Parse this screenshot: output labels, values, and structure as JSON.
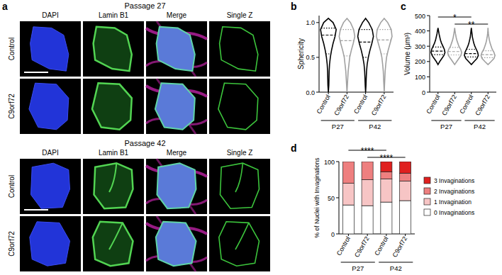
{
  "image_panel": {
    "label": "a",
    "sections": [
      {
        "title": "Passage 27",
        "columns": [
          "DAPI",
          "Lamin B1",
          "Merge",
          "Single Z"
        ],
        "rows": [
          "Control",
          "C9orf72"
        ]
      },
      {
        "title": "Passage 42",
        "columns": [
          "DAPI",
          "Lamin B1",
          "Merge",
          "Single Z"
        ],
        "rows": [
          "Control",
          "C9orf72"
        ]
      }
    ]
  },
  "chart_data": [
    {
      "type": "violin",
      "label": "b",
      "ylabel": "Sphericity",
      "categories": [
        "Control",
        "C9orf72",
        "Control",
        "C9orf72"
      ],
      "groups": [
        "P27",
        "P42"
      ],
      "colors": [
        "#000000",
        "#a0a0a0",
        "#000000",
        "#a0a0a0"
      ],
      "ylim": [
        0,
        1.1
      ],
      "yticks": [
        {
          "value": 0,
          "label": "0.0"
        },
        0.5,
        {
          "value": 1,
          "label": "1.0"
        }
      ],
      "levels": [
        0,
        0.1,
        0.2,
        0.3,
        0.4,
        0.5,
        0.6,
        0.7,
        0.8,
        0.9,
        1.0,
        1.06
      ],
      "density": [
        [
          0,
          0.06,
          0.08,
          0.1,
          0.15,
          0.25,
          0.4,
          0.6,
          0.85,
          1.0,
          0.6,
          0
        ],
        [
          0,
          0.05,
          0.1,
          0.15,
          0.25,
          0.35,
          0.55,
          0.8,
          1.0,
          0.85,
          0.45,
          0
        ],
        [
          0,
          0.05,
          0.08,
          0.12,
          0.2,
          0.35,
          0.55,
          0.8,
          1.0,
          0.85,
          0.4,
          0
        ],
        [
          0,
          0.04,
          0.08,
          0.12,
          0.2,
          0.3,
          0.5,
          0.75,
          1.0,
          0.9,
          0.45,
          0
        ]
      ],
      "values": [
        0.82,
        0.74,
        0.72,
        0.75
      ],
      "q1": [
        0.55,
        0.52,
        0.5,
        0.55
      ],
      "q3": [
        0.92,
        0.9,
        0.9,
        0.9
      ]
    },
    {
      "type": "violin",
      "label": "c",
      "ylabel": "Volume (μm³)",
      "categories": [
        "Control",
        "C9orf72",
        "Control",
        "C9orf72"
      ],
      "groups": [
        "P27",
        "P42"
      ],
      "colors": [
        "#000000",
        "#a0a0a0",
        "#000000",
        "#a0a0a0"
      ],
      "ylim": [
        0,
        500
      ],
      "yticks": [
        0,
        100,
        200,
        300,
        400,
        500
      ],
      "levels": [
        180,
        200,
        220,
        240,
        260,
        280,
        300,
        320,
        340,
        360,
        380,
        400,
        420
      ],
      "density": [
        [
          0,
          0.25,
          0.55,
          0.85,
          1.0,
          0.9,
          0.7,
          0.5,
          0.35,
          0.25,
          0.15,
          0.08,
          0
        ],
        [
          0,
          0.3,
          0.6,
          0.9,
          1.0,
          0.85,
          0.6,
          0.45,
          0.3,
          0.2,
          0.12,
          0.05,
          0
        ],
        [
          0,
          0.4,
          0.8,
          1.0,
          0.9,
          0.7,
          0.5,
          0.35,
          0.25,
          0.15,
          0.1,
          0.05,
          0
        ],
        [
          0,
          0.45,
          0.85,
          1.0,
          0.85,
          0.6,
          0.45,
          0.3,
          0.2,
          0.12,
          0.06,
          0.02,
          0
        ]
      ],
      "values": [
        268,
        265,
        252,
        245
      ],
      "q1": [
        245,
        243,
        230,
        225
      ],
      "q3": [
        295,
        292,
        280,
        270
      ],
      "annotations": [
        {
          "text": "*",
          "from": 0,
          "to": 2
        },
        {
          "text": "**",
          "from": 1,
          "to": 3
        }
      ]
    },
    {
      "type": "bar",
      "label": "d",
      "ylabel": "% of Nuclei with Invaginations",
      "stacked": true,
      "legend": "right",
      "categories": [
        "Control",
        "C9orf72",
        "Control",
        "C9orf72"
      ],
      "groups": [
        "P27",
        "P42"
      ],
      "ylim": [
        0,
        100
      ],
      "yticks": [
        0,
        50,
        100
      ],
      "series": [
        {
          "name": "0 Invaginations",
          "color": "#ffffff",
          "values": [
            40,
            39,
            44,
            46
          ]
        },
        {
          "name": "1 Invagination",
          "color": "#f7c5c5",
          "values": [
            30,
            36,
            32,
            27
          ]
        },
        {
          "name": "2 Invaginations",
          "color": "#ee7f7f",
          "values": [
            30,
            25,
            10,
            11
          ]
        },
        {
          "name": "3 Invaginations",
          "color": "#e0201f",
          "values": [
            0,
            0,
            14,
            16
          ]
        }
      ],
      "annotations": [
        {
          "text": "****",
          "from": 0,
          "to": 2
        },
        {
          "text": "****",
          "from": 1,
          "to": 3
        }
      ]
    }
  ]
}
